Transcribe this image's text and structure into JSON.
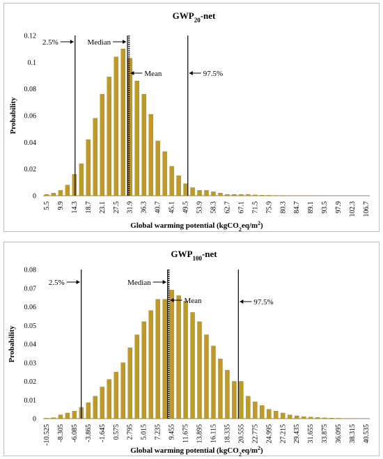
{
  "colors": {
    "bar_fill": "#c09a24",
    "bar_stroke": "#9a7a12",
    "axis": "#808080",
    "marker": "#000000"
  },
  "chart_data": [
    {
      "type": "bar",
      "title_main": "GWP",
      "title_sub": "20",
      "title_suffix": "-net",
      "xlabel_main": "Global warming potential (kgCO",
      "xlabel_sub": "2",
      "xlabel_mid": "eq/m",
      "xlabel_sup": "2",
      "xlabel_end": ")",
      "ylabel": "Probability",
      "ylim": [
        0,
        0.12
      ],
      "yticks": [
        "0",
        "0.02",
        "0.04",
        "0.06",
        "0.08",
        "0.1",
        "0.12"
      ],
      "grid": false,
      "categories": [
        "5.5",
        "7.7",
        "9.9",
        "12.1",
        "14.3",
        "16.5",
        "18.7",
        "20.9",
        "23.1",
        "25.3",
        "27.5",
        "29.7",
        "31.9",
        "34.1",
        "36.3",
        "38.5",
        "40.7",
        "42.9",
        "45.1",
        "47.3",
        "49.5",
        "51.7",
        "53.9",
        "56.1",
        "58.3",
        "60.5",
        "62.7",
        "64.9",
        "67.1",
        "69.3",
        "71.5",
        "73.7",
        "75.9",
        "78.1",
        "80.3",
        "82.5",
        "84.7",
        "86.9",
        "89.1",
        "91.3",
        "93.5",
        "95.7",
        "97.9",
        "100.1",
        "102.3",
        "104.5",
        "106.7"
      ],
      "x_tick_labels": [
        "5.5",
        "9.9",
        "14.3",
        "18.7",
        "23.1",
        "27.5",
        "31.9",
        "36.3",
        "40.7",
        "45.1",
        "49.5",
        "53.9",
        "58.3",
        "62.7",
        "67.1",
        "71.5",
        "75.9",
        "80.3",
        "84.7",
        "89.1",
        "93.5",
        "97.9",
        "102.3",
        "106.7"
      ],
      "values": [
        0.001,
        0.002,
        0.004,
        0.008,
        0.016,
        0.024,
        0.042,
        0.058,
        0.076,
        0.089,
        0.104,
        0.11,
        0.103,
        0.086,
        0.076,
        0.061,
        0.041,
        0.033,
        0.022,
        0.015,
        0.009,
        0.006,
        0.004,
        0.004,
        0.003,
        0.002,
        0.001,
        0.001,
        0.001,
        0.001,
        0.0006,
        0.0004,
        0.0003,
        0.0002,
        0.0002,
        0.0001,
        0.0001,
        0.0001,
        0.0001,
        0,
        0,
        0,
        0,
        0,
        0,
        0,
        0
      ],
      "markers": [
        {
          "label": "2.5%",
          "x": 14.5,
          "style": "solid"
        },
        {
          "label": "Median",
          "x": 31.1,
          "style": "solid"
        },
        {
          "label": "Mean",
          "x": 31.6,
          "style": "dotted"
        },
        {
          "label": "97.5%",
          "x": 50.2,
          "style": "solid"
        }
      ]
    },
    {
      "type": "bar",
      "title_main": "GWP",
      "title_sub": "100",
      "title_suffix": "-net",
      "xlabel_main": "Global warming potential (kgCO",
      "xlabel_sub": "2",
      "xlabel_mid": "eq/m",
      "xlabel_sup": "2",
      "xlabel_end": ")",
      "ylabel": "Probability",
      "ylim": [
        0,
        0.08
      ],
      "yticks": [
        "0",
        "0.01",
        "0.02",
        "0.03",
        "0.04",
        "0.05",
        "0.06",
        "0.07",
        "0.08"
      ],
      "grid": false,
      "categories": [
        "-10.525",
        "-9.415",
        "-8.305",
        "-7.195",
        "-6.085",
        "-4.975",
        "-3.865",
        "-2.755",
        "-1.645",
        "-0.535",
        "0.575",
        "1.685",
        "2.795",
        "3.905",
        "5.015",
        "6.125",
        "7.235",
        "8.345",
        "9.455",
        "10.565",
        "11.675",
        "12.785",
        "13.895",
        "15.005",
        "16.115",
        "17.225",
        "18.335",
        "19.445",
        "20.555",
        "21.665",
        "22.775",
        "23.885",
        "24.995",
        "26.105",
        "27.215",
        "28.325",
        "29.435",
        "30.545",
        "31.655",
        "32.765",
        "33.875",
        "34.985",
        "36.095",
        "37.205",
        "38.315",
        "39.425",
        "40.535"
      ],
      "x_tick_labels": [
        "-10.525",
        "-8.305",
        "-6.085",
        "-3.865",
        "-1.645",
        "0.575",
        "2.795",
        "5.015",
        "7.235",
        "9.455",
        "11.675",
        "13.895",
        "16.115",
        "18.335",
        "20.555",
        "22.775",
        "24.995",
        "27.215",
        "29.435",
        "31.655",
        "33.875",
        "36.095",
        "38.315",
        "40.535"
      ],
      "values": [
        0.0002,
        0.0005,
        0.002,
        0.003,
        0.004,
        0.006,
        0.0085,
        0.012,
        0.017,
        0.021,
        0.025,
        0.03,
        0.038,
        0.045,
        0.052,
        0.058,
        0.064,
        0.064,
        0.069,
        0.066,
        0.063,
        0.057,
        0.052,
        0.045,
        0.039,
        0.032,
        0.026,
        0.02,
        0.02,
        0.012,
        0.009,
        0.007,
        0.005,
        0.004,
        0.003,
        0.002,
        0.0015,
        0.001,
        0.0008,
        0.0006,
        0.0004,
        0.0003,
        0.0002,
        0.0001,
        0.0001,
        0,
        0
      ],
      "markers": [
        {
          "label": "2.5%",
          "x": -5.0,
          "style": "solid"
        },
        {
          "label": "Median",
          "x": 8.8,
          "style": "solid"
        },
        {
          "label": "Mean",
          "x": 9.0,
          "style": "dotted"
        },
        {
          "label": "97.5%",
          "x": 20.1,
          "style": "solid"
        }
      ]
    }
  ]
}
